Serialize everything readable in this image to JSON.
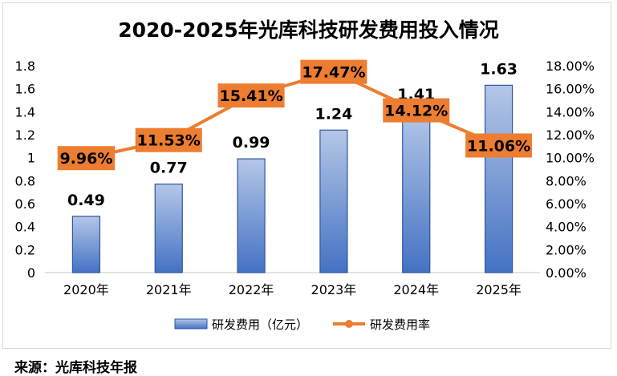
{
  "chart_data": {
    "type": "bar+line",
    "title": "2020-2025年光库科技研发费用投入情况",
    "categories": [
      "2020年",
      "2021年",
      "2022年",
      "2023年",
      "2024年",
      "2025年"
    ],
    "series": [
      {
        "name": "研发费用（亿元）",
        "type": "bar",
        "axis": "left",
        "values": [
          0.49,
          0.77,
          0.99,
          1.24,
          1.41,
          1.63
        ],
        "labels": [
          "0.49",
          "0.77",
          "0.99",
          "1.24",
          "1.41",
          "1.63"
        ],
        "color": "#4472C4"
      },
      {
        "name": "研发费用率",
        "type": "line",
        "axis": "right",
        "values": [
          9.96,
          11.53,
          15.41,
          17.47,
          14.12,
          11.06
        ],
        "labels": [
          "9.96%",
          "11.53%",
          "15.41%",
          "17.47%",
          "14.12%",
          "11.06%"
        ],
        "color": "#ED7D31"
      }
    ],
    "left_axis": {
      "ylim": [
        0,
        1.8
      ],
      "ticks": [
        "0",
        "0.2",
        "0.4",
        "0.6",
        "0.8",
        "1",
        "1.2",
        "1.4",
        "1.6",
        "1.8"
      ]
    },
    "right_axis": {
      "ylim": [
        0,
        18
      ],
      "ticks": [
        "0.00%",
        "2.00%",
        "4.00%",
        "6.00%",
        "8.00%",
        "10.00%",
        "12.00%",
        "14.00%",
        "16.00%",
        "18.00%"
      ]
    },
    "legend": "bottom",
    "grid": false
  },
  "source": "来源：光库科技年报"
}
